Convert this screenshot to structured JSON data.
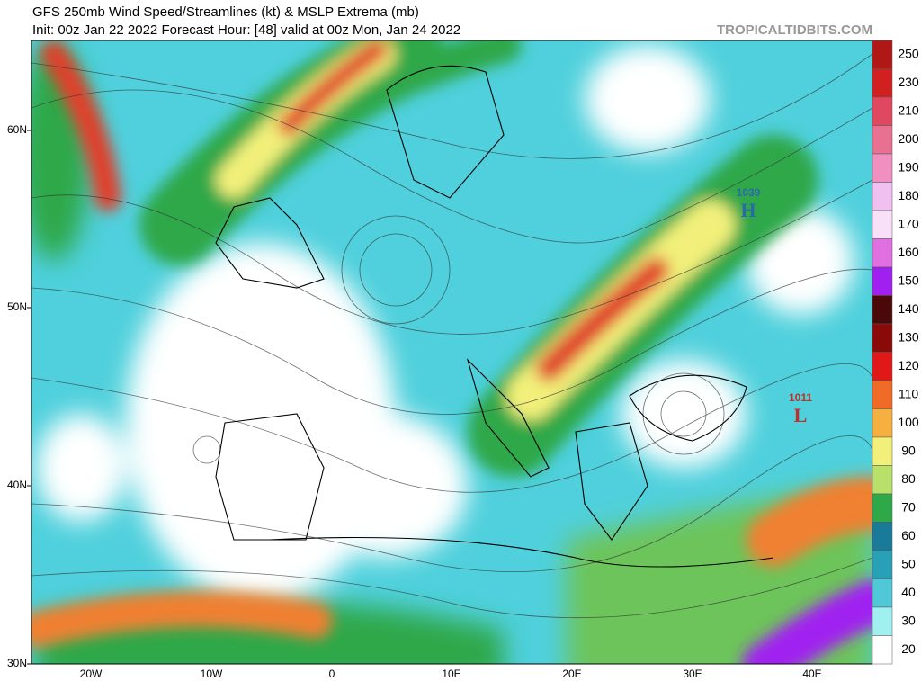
{
  "header": {
    "title": "GFS 250mb Wind Speed/Streamlines (kt) & MSLP Extrema (mb)",
    "subtitle": "Init: 00z Jan 22 2022   Forecast Hour: [48]   valid at 00z Mon, Jan 24 2022",
    "source": "TROPICALTIDBITS.COM"
  },
  "map": {
    "lat_labels": [
      "60N",
      "50N",
      "40N",
      "30N"
    ],
    "lon_labels": [
      "20W",
      "10W",
      "0",
      "10E",
      "20E",
      "30E",
      "40E"
    ],
    "pressure_centers": [
      {
        "value": "1039",
        "symbol": "H"
      },
      {
        "value": "1011",
        "symbol": "L"
      }
    ]
  },
  "colorbar": {
    "labels": [
      "250",
      "230",
      "210",
      "200",
      "190",
      "180",
      "170",
      "160",
      "150",
      "140",
      "130",
      "120",
      "110",
      "100",
      "90",
      "80",
      "70",
      "60",
      "50",
      "40",
      "30",
      "20"
    ]
  }
}
